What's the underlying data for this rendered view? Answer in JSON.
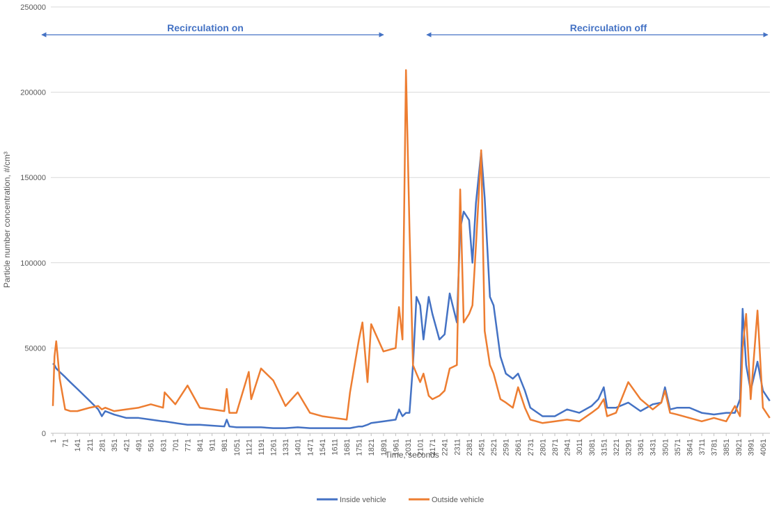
{
  "chart_data": {
    "type": "line",
    "annotations": [
      "Recirculation on",
      "Recirculation off"
    ],
    "xlabel": "Time, seconds",
    "ylabel": "Particle number concentration, #/cm³",
    "x": [
      1,
      10,
      20,
      40,
      71,
      100,
      141,
      211,
      260,
      281,
      300,
      351,
      421,
      491,
      561,
      631,
      640,
      701,
      771,
      841,
      911,
      981,
      995,
      1010,
      1051,
      1121,
      1135,
      1191,
      1261,
      1331,
      1401,
      1471,
      1541,
      1611,
      1681,
      1700,
      1751,
      1771,
      1800,
      1821,
      1891,
      1961,
      1980,
      2000,
      2020,
      2040,
      2060,
      2080,
      2101,
      2120,
      2150,
      2171,
      2211,
      2241,
      2270,
      2311,
      2330,
      2350,
      2381,
      2400,
      2420,
      2450,
      2470,
      2500,
      2521,
      2560,
      2591,
      2631,
      2661,
      2700,
      2731,
      2801,
      2871,
      2941,
      3011,
      3081,
      3120,
      3151,
      3170,
      3221,
      3291,
      3361,
      3431,
      3480,
      3501,
      3530,
      3571,
      3641,
      3711,
      3781,
      3851,
      3901,
      3930,
      3945,
      3965,
      3991,
      4030,
      4061,
      4100
    ],
    "series": [
      {
        "name": "Inside vehicle",
        "color": "#4472c4",
        "values": [
          41000,
          40000,
          38000,
          36000,
          33000,
          30000,
          26000,
          19000,
          14000,
          10000,
          13000,
          11000,
          9000,
          9000,
          8000,
          7000,
          7000,
          6000,
          5000,
          5000,
          4500,
          4000,
          8000,
          4000,
          3500,
          3500,
          3500,
          3500,
          3000,
          3000,
          3500,
          3000,
          3000,
          3000,
          3000,
          3000,
          4000,
          4000,
          5000,
          6000,
          7000,
          8000,
          14000,
          10000,
          12000,
          12000,
          40000,
          80000,
          75000,
          55000,
          80000,
          70000,
          55000,
          58000,
          82000,
          65000,
          120000,
          130000,
          125000,
          100000,
          135000,
          165000,
          138000,
          80000,
          75000,
          45000,
          35000,
          32000,
          35000,
          25000,
          15000,
          10000,
          10000,
          14000,
          12000,
          16000,
          20000,
          27000,
          15000,
          15000,
          18000,
          13000,
          17000,
          18000,
          27000,
          14000,
          15000,
          15000,
          12000,
          11000,
          12000,
          12000,
          20000,
          73000,
          40000,
          25000,
          42000,
          25000,
          19000
        ]
      },
      {
        "name": "Outside vehicle",
        "color": "#ed7d31",
        "values": [
          16000,
          45000,
          54000,
          32000,
          14000,
          13000,
          13000,
          15000,
          16000,
          14000,
          15000,
          13000,
          14000,
          15000,
          17000,
          15000,
          24000,
          17000,
          28000,
          15000,
          14000,
          13000,
          26000,
          12000,
          12000,
          36000,
          20000,
          38000,
          31000,
          16000,
          24000,
          12000,
          10000,
          9000,
          8000,
          24000,
          55000,
          65000,
          30000,
          64000,
          48000,
          50000,
          74000,
          55000,
          213000,
          120000,
          40000,
          35000,
          30000,
          35000,
          22000,
          20000,
          22000,
          25000,
          38000,
          40000,
          143000,
          65000,
          70000,
          75000,
          110000,
          166000,
          60000,
          40000,
          35000,
          20000,
          18000,
          15000,
          27000,
          15000,
          8000,
          6000,
          7000,
          8000,
          7000,
          12000,
          15000,
          20000,
          10000,
          12000,
          30000,
          20000,
          14000,
          18000,
          25000,
          12000,
          11000,
          9000,
          7000,
          9000,
          7000,
          16000,
          10000,
          50000,
          70000,
          20000,
          72000,
          15000,
          9000
        ]
      }
    ],
    "xlim": [
      1,
      4101
    ],
    "xticks": [
      1,
      71,
      141,
      211,
      281,
      351,
      421,
      491,
      561,
      631,
      701,
      771,
      841,
      911,
      981,
      1051,
      1121,
      1191,
      1261,
      1331,
      1401,
      1471,
      1541,
      1611,
      1681,
      1751,
      1821,
      1891,
      1961,
      2031,
      2101,
      2171,
      2241,
      2311,
      2381,
      2451,
      2521,
      2591,
      2661,
      2731,
      2801,
      2871,
      2941,
      3011,
      3081,
      3151,
      3221,
      3291,
      3361,
      3431,
      3501,
      3571,
      3641,
      3711,
      3781,
      3851,
      3921,
      3991,
      4061
    ],
    "ylim": [
      0,
      250000
    ],
    "yticks": [
      0,
      50000,
      100000,
      150000,
      200000,
      250000
    ],
    "grid": true
  }
}
